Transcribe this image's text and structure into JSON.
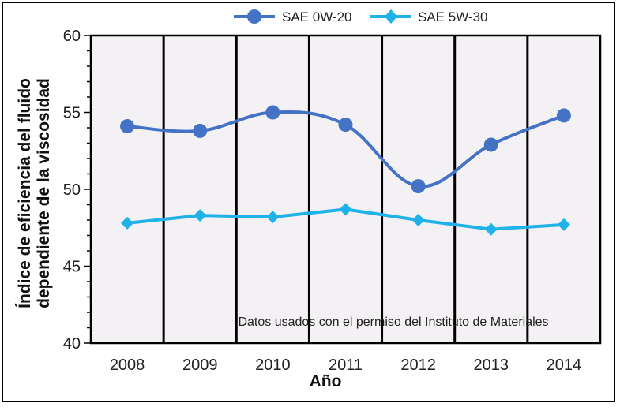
{
  "chart_data": {
    "type": "line",
    "title": "",
    "xlabel": "Año",
    "ylabel_lines": [
      "Índice de eficiencia del fluido",
      "dependiente de la viscosidad"
    ],
    "categories": [
      "2008",
      "2009",
      "2010",
      "2011",
      "2012",
      "2013",
      "2014"
    ],
    "ylim": [
      40,
      60
    ],
    "yticks": [
      "40",
      "45",
      "50",
      "55",
      "60"
    ],
    "grid": "vertical-lines",
    "legend_position": "top",
    "annotation": "Datos usados con el permiso del Instituto de Materiales",
    "series": [
      {
        "name": "SAE 0W-20",
        "marker": "circle",
        "color": "#4472C4",
        "values": [
          54.1,
          53.8,
          55.0,
          54.2,
          50.2,
          52.9,
          54.8
        ]
      },
      {
        "name": "SAE 5W-30",
        "marker": "diamond",
        "color": "#1FB2E8",
        "values": [
          47.8,
          48.3,
          48.2,
          48.7,
          48.0,
          47.4,
          47.7
        ]
      }
    ]
  }
}
